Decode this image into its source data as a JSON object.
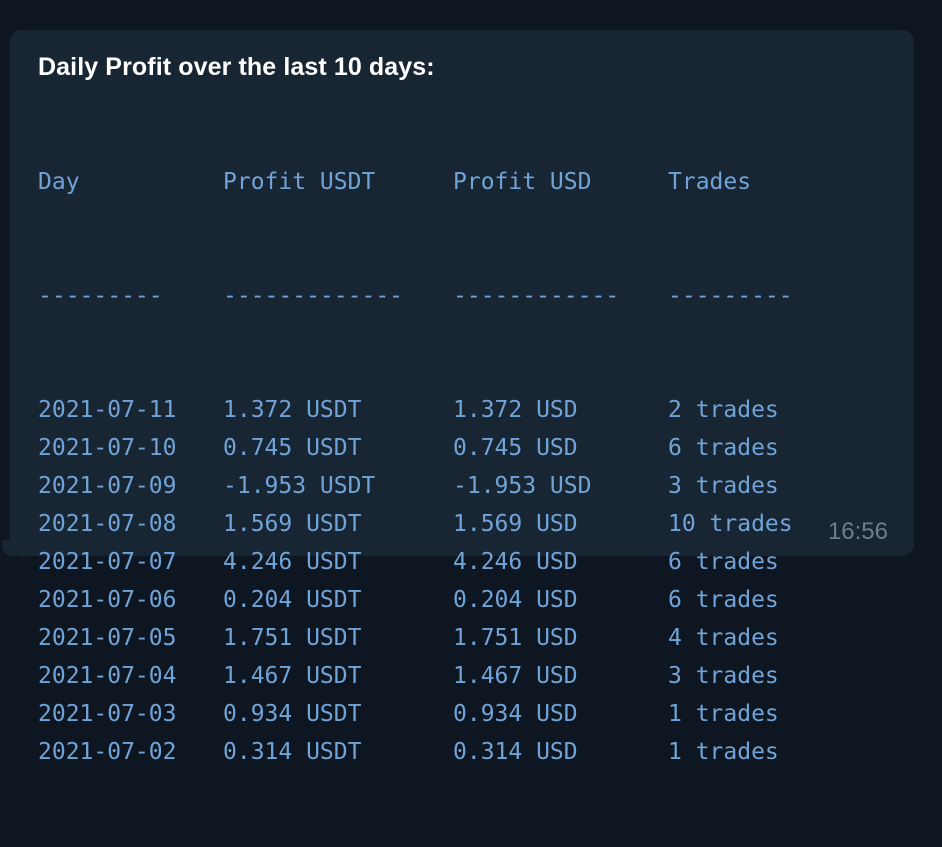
{
  "message": {
    "title": "Daily Profit over the last 10 days:",
    "time": "16:56",
    "table": {
      "headers": [
        "Day",
        "Profit USDT",
        "Profit USD",
        "Trades"
      ],
      "separators": [
        "---------",
        "-------------",
        "------------",
        "---------"
      ],
      "rows": [
        [
          "2021-07-11",
          "1.372 USDT",
          "1.372 USD",
          "2 trades"
        ],
        [
          "2021-07-10",
          "0.745 USDT",
          "0.745 USD",
          "6 trades"
        ],
        [
          "2021-07-09",
          "-1.953 USDT",
          "-1.953 USD",
          "3 trades"
        ],
        [
          "2021-07-08",
          "1.569 USDT",
          "1.569 USD",
          "10 trades"
        ],
        [
          "2021-07-07",
          "4.246 USDT",
          "4.246 USD",
          "6 trades"
        ],
        [
          "2021-07-06",
          "0.204 USDT",
          "0.204 USD",
          "6 trades"
        ],
        [
          "2021-07-05",
          "1.751 USDT",
          "1.751 USD",
          "4 trades"
        ],
        [
          "2021-07-04",
          "1.467 USDT",
          "1.467 USD",
          "3 trades"
        ],
        [
          "2021-07-03",
          "0.934 USDT",
          "0.934 USD",
          "1 trades"
        ],
        [
          "2021-07-02",
          "0.314 USDT",
          "0.314 USD",
          "1 trades"
        ]
      ]
    }
  },
  "colors": {
    "background": "#0e1621",
    "bubble": "#182533",
    "title": "#ffffff",
    "mono_text": "#70a4d8",
    "timestamp": "#6d7f8f"
  }
}
